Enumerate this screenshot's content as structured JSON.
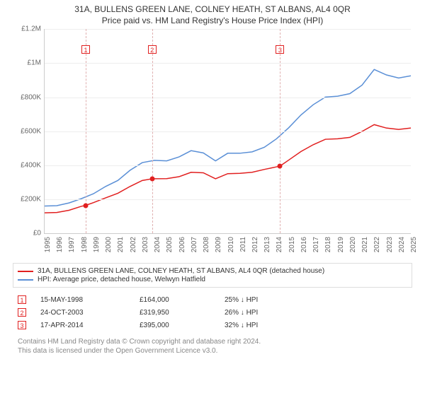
{
  "title_line1": "31A, BULLENS GREEN LANE, COLNEY HEATH, ST ALBANS, AL4 0QR",
  "title_line2": "Price paid vs. HM Land Registry's House Price Index (HPI)",
  "chart": {
    "type": "line",
    "background_color": "#ffffff",
    "grid_color": "#eeeeee",
    "axis_color": "#cccccc",
    "tick_label_color": "#666666",
    "tick_fontsize": 10,
    "x": {
      "min": 1995,
      "max": 2025,
      "ticks": [
        "1995",
        "1996",
        "1997",
        "1998",
        "1999",
        "2000",
        "2001",
        "2002",
        "2003",
        "2004",
        "2005",
        "2006",
        "2007",
        "2008",
        "2009",
        "2010",
        "2011",
        "2012",
        "2013",
        "2014",
        "2015",
        "2016",
        "2017",
        "2018",
        "2019",
        "2020",
        "2021",
        "2022",
        "2023",
        "2024",
        "2025"
      ]
    },
    "y": {
      "min": 0,
      "max": 1200000,
      "tick_step": 200000,
      "tick_labels": [
        "£0",
        "£200K",
        "£400K",
        "£600K",
        "£800K",
        "£1M",
        "£1.2M"
      ]
    },
    "series": [
      {
        "id": "property",
        "label": "31A, BULLENS GREEN LANE, COLNEY HEATH, ST ALBANS, AL4 0QR (detached house)",
        "color": "#e11f1f",
        "line_width": 1.5,
        "data": [
          {
            "x": 1995.0,
            "y": 120000
          },
          {
            "x": 1996.0,
            "y": 122000
          },
          {
            "x": 1997.0,
            "y": 135000
          },
          {
            "x": 1998.0,
            "y": 158000
          },
          {
            "x": 1998.37,
            "y": 164000
          },
          {
            "x": 1999.0,
            "y": 180000
          },
          {
            "x": 2000.0,
            "y": 208000
          },
          {
            "x": 2001.0,
            "y": 235000
          },
          {
            "x": 2002.0,
            "y": 275000
          },
          {
            "x": 2003.0,
            "y": 310000
          },
          {
            "x": 2003.81,
            "y": 319950
          },
          {
            "x": 2004.0,
            "y": 320000
          },
          {
            "x": 2005.0,
            "y": 321000
          },
          {
            "x": 2006.0,
            "y": 332000
          },
          {
            "x": 2007.0,
            "y": 358000
          },
          {
            "x": 2008.0,
            "y": 355000
          },
          {
            "x": 2009.0,
            "y": 320000
          },
          {
            "x": 2010.0,
            "y": 350000
          },
          {
            "x": 2011.0,
            "y": 352000
          },
          {
            "x": 2012.0,
            "y": 358000
          },
          {
            "x": 2013.0,
            "y": 375000
          },
          {
            "x": 2014.0,
            "y": 390000
          },
          {
            "x": 2014.29,
            "y": 395000
          },
          {
            "x": 2015.0,
            "y": 430000
          },
          {
            "x": 2016.0,
            "y": 480000
          },
          {
            "x": 2017.0,
            "y": 520000
          },
          {
            "x": 2018.0,
            "y": 552000
          },
          {
            "x": 2019.0,
            "y": 555000
          },
          {
            "x": 2020.0,
            "y": 563000
          },
          {
            "x": 2021.0,
            "y": 598000
          },
          {
            "x": 2022.0,
            "y": 638000
          },
          {
            "x": 2023.0,
            "y": 618000
          },
          {
            "x": 2024.0,
            "y": 610000
          },
          {
            "x": 2025.0,
            "y": 618000
          }
        ]
      },
      {
        "id": "hpi",
        "label": "HPI: Average price, detached house, Welwyn Hatfield",
        "color": "#5a8fd6",
        "line_width": 1.5,
        "data": [
          {
            "x": 1995.0,
            "y": 160000
          },
          {
            "x": 1996.0,
            "y": 162000
          },
          {
            "x": 1997.0,
            "y": 178000
          },
          {
            "x": 1998.0,
            "y": 203000
          },
          {
            "x": 1999.0,
            "y": 232000
          },
          {
            "x": 2000.0,
            "y": 275000
          },
          {
            "x": 2001.0,
            "y": 310000
          },
          {
            "x": 2002.0,
            "y": 370000
          },
          {
            "x": 2003.0,
            "y": 415000
          },
          {
            "x": 2004.0,
            "y": 428000
          },
          {
            "x": 2005.0,
            "y": 425000
          },
          {
            "x": 2006.0,
            "y": 448000
          },
          {
            "x": 2007.0,
            "y": 485000
          },
          {
            "x": 2008.0,
            "y": 472000
          },
          {
            "x": 2009.0,
            "y": 425000
          },
          {
            "x": 2010.0,
            "y": 470000
          },
          {
            "x": 2011.0,
            "y": 470000
          },
          {
            "x": 2012.0,
            "y": 478000
          },
          {
            "x": 2013.0,
            "y": 505000
          },
          {
            "x": 2014.0,
            "y": 555000
          },
          {
            "x": 2015.0,
            "y": 620000
          },
          {
            "x": 2016.0,
            "y": 695000
          },
          {
            "x": 2017.0,
            "y": 755000
          },
          {
            "x": 2018.0,
            "y": 800000
          },
          {
            "x": 2019.0,
            "y": 805000
          },
          {
            "x": 2020.0,
            "y": 820000
          },
          {
            "x": 2021.0,
            "y": 870000
          },
          {
            "x": 2022.0,
            "y": 962000
          },
          {
            "x": 2023.0,
            "y": 930000
          },
          {
            "x": 2024.0,
            "y": 912000
          },
          {
            "x": 2025.0,
            "y": 925000
          }
        ]
      }
    ],
    "sale_markers": [
      {
        "n": "1",
        "x": 1998.37,
        "y": 164000,
        "box_y": 1080000
      },
      {
        "n": "2",
        "x": 2003.81,
        "y": 319950,
        "box_y": 1080000
      },
      {
        "n": "3",
        "x": 2014.29,
        "y": 395000,
        "box_y": 1080000
      }
    ],
    "marker_box_color": "#e11f1f",
    "sale_dot_color": "#e11f1f",
    "vline_color": "#e0b0b0"
  },
  "sales": [
    {
      "n": "1",
      "date": "15-MAY-1998",
      "price": "£164,000",
      "hpi_delta": "25% ↓ HPI"
    },
    {
      "n": "2",
      "date": "24-OCT-2003",
      "price": "£319,950",
      "hpi_delta": "26% ↓ HPI"
    },
    {
      "n": "3",
      "date": "17-APR-2014",
      "price": "£395,000",
      "hpi_delta": "32% ↓ HPI"
    }
  ],
  "footer_line1": "Contains HM Land Registry data © Crown copyright and database right 2024.",
  "footer_line2": "This data is licensed under the Open Government Licence v3.0."
}
